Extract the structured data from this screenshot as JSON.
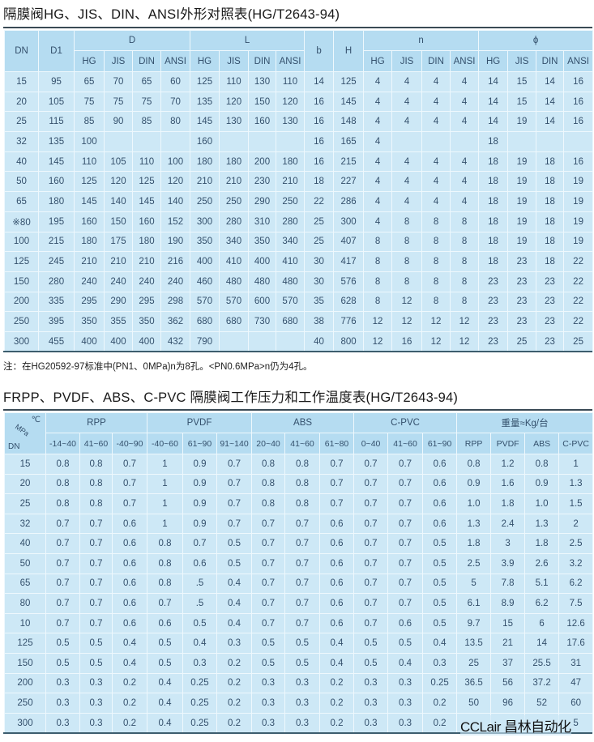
{
  "table1": {
    "title": "隔膜阀HG、JIS、DIN、ANSI外形对照表(HG/T2643-94)",
    "groups": {
      "dn": "DN",
      "d1": "D1",
      "D": "D",
      "L": "L",
      "b": "b",
      "H": "H",
      "n": "n",
      "phi": "ϕ"
    },
    "sub": [
      "HG",
      "JIS",
      "DIN",
      "ANSI"
    ],
    "rows": [
      [
        "15",
        "95",
        "65",
        "70",
        "65",
        "60",
        "125",
        "110",
        "130",
        "110",
        "14",
        "125",
        "4",
        "4",
        "4",
        "4",
        "14",
        "15",
        "14",
        "16"
      ],
      [
        "20",
        "105",
        "75",
        "75",
        "75",
        "70",
        "135",
        "120",
        "150",
        "120",
        "16",
        "145",
        "4",
        "4",
        "4",
        "4",
        "14",
        "15",
        "14",
        "16"
      ],
      [
        "25",
        "115",
        "85",
        "90",
        "85",
        "80",
        "145",
        "130",
        "160",
        "130",
        "16",
        "148",
        "4",
        "4",
        "4",
        "4",
        "14",
        "19",
        "14",
        "16"
      ],
      [
        "32",
        "135",
        "100",
        "",
        "",
        "",
        "160",
        "",
        "",
        "",
        "16",
        "165",
        "4",
        "",
        "",
        "",
        "18",
        "",
        "",
        ""
      ],
      [
        "40",
        "145",
        "110",
        "105",
        "110",
        "100",
        "180",
        "180",
        "200",
        "180",
        "16",
        "215",
        "4",
        "4",
        "4",
        "4",
        "18",
        "19",
        "18",
        "16"
      ],
      [
        "50",
        "160",
        "125",
        "120",
        "125",
        "120",
        "210",
        "210",
        "230",
        "210",
        "18",
        "227",
        "4",
        "4",
        "4",
        "4",
        "18",
        "19",
        "18",
        "19"
      ],
      [
        "65",
        "180",
        "145",
        "140",
        "145",
        "140",
        "250",
        "250",
        "290",
        "250",
        "22",
        "286",
        "4",
        "4",
        "4",
        "4",
        "18",
        "19",
        "18",
        "19"
      ],
      [
        "※80",
        "195",
        "160",
        "150",
        "160",
        "152",
        "300",
        "280",
        "310",
        "280",
        "25",
        "300",
        "4",
        "8",
        "8",
        "8",
        "18",
        "19",
        "18",
        "19"
      ],
      [
        "100",
        "215",
        "180",
        "175",
        "180",
        "190",
        "350",
        "340",
        "350",
        "340",
        "25",
        "407",
        "8",
        "8",
        "8",
        "8",
        "18",
        "19",
        "18",
        "19"
      ],
      [
        "125",
        "245",
        "210",
        "210",
        "210",
        "216",
        "400",
        "410",
        "400",
        "410",
        "30",
        "417",
        "8",
        "8",
        "8",
        "8",
        "18",
        "23",
        "18",
        "22"
      ],
      [
        "150",
        "280",
        "240",
        "240",
        "240",
        "240",
        "460",
        "480",
        "480",
        "480",
        "30",
        "576",
        "8",
        "8",
        "8",
        "8",
        "23",
        "23",
        "23",
        "22"
      ],
      [
        "200",
        "335",
        "295",
        "290",
        "295",
        "298",
        "570",
        "570",
        "600",
        "570",
        "35",
        "628",
        "8",
        "12",
        "8",
        "8",
        "23",
        "23",
        "23",
        "22"
      ],
      [
        "250",
        "395",
        "350",
        "355",
        "350",
        "362",
        "680",
        "680",
        "730",
        "680",
        "38",
        "776",
        "12",
        "12",
        "12",
        "12",
        "23",
        "23",
        "23",
        "22"
      ],
      [
        "300",
        "455",
        "400",
        "400",
        "400",
        "432",
        "790",
        "",
        "",
        "",
        "40",
        "800",
        "12",
        "16",
        "12",
        "12",
        "23",
        "25",
        "23",
        "25"
      ]
    ],
    "note": "注：在HG20592-97标准中(PN1、0MPa)n为8孔。<PN0.6MPa>n仍为4孔。"
  },
  "table2": {
    "title": "FRPP、PVDF、ABS、C-PVC 隔膜阀工作压力和工作温度表(HG/T2643-94)",
    "corner": {
      "temp": "℃",
      "mpa": "MPa",
      "dn": "DN"
    },
    "groups": [
      "RPP",
      "PVDF",
      "ABS",
      "C-PVC",
      "重量≈Kg/台"
    ],
    "sub": [
      "-14~40",
      "41~60",
      "-40~90",
      "-40~60",
      "61~90",
      "91~140",
      "20~40",
      "41~60",
      "61~80",
      "0~40",
      "41~60",
      "61~90",
      "RPP",
      "PVDF",
      "ABS",
      "C-PVC"
    ],
    "rows": [
      [
        "15",
        "0.8",
        "0.8",
        "0.7",
        "1",
        "0.9",
        "0.7",
        "0.8",
        "0.8",
        "0.7",
        "0.7",
        "0.7",
        "0.6",
        "0.8",
        "1.2",
        "0.8",
        "1"
      ],
      [
        "20",
        "0.8",
        "0.8",
        "0.7",
        "1",
        "0.9",
        "0.7",
        "0.8",
        "0.8",
        "0.7",
        "0.7",
        "0.7",
        "0.6",
        "0.9",
        "1.6",
        "0.9",
        "1.3"
      ],
      [
        "25",
        "0.8",
        "0.8",
        "0.7",
        "1",
        "0.9",
        "0.7",
        "0.8",
        "0.8",
        "0.7",
        "0.7",
        "0.7",
        "0.6",
        "1.0",
        "1.8",
        "1.0",
        "1.5"
      ],
      [
        "32",
        "0.7",
        "0.7",
        "0.6",
        "1",
        "0.9",
        "0.7",
        "0.7",
        "0.7",
        "0.6",
        "0.7",
        "0.7",
        "0.6",
        "1.3",
        "2.4",
        "1.3",
        "2"
      ],
      [
        "40",
        "0.7",
        "0.7",
        "0.6",
        "0.8",
        "0.7",
        "0.5",
        "0.7",
        "0.7",
        "0.6",
        "0.7",
        "0.7",
        "0.5",
        "1.8",
        "3",
        "1.8",
        "2.5"
      ],
      [
        "50",
        "0.7",
        "0.7",
        "0.6",
        "0.8",
        "0.6",
        "0.5",
        "0.7",
        "0.7",
        "0.6",
        "0.7",
        "0.7",
        "0.5",
        "2.5",
        "3.9",
        "2.6",
        "3.2"
      ],
      [
        "65",
        "0.7",
        "0.7",
        "0.6",
        "0.8",
        ".5",
        "0.4",
        "0.7",
        "0.7",
        "0.6",
        "0.7",
        "0.7",
        "0.5",
        "5",
        "7.8",
        "5.1",
        "6.2"
      ],
      [
        "80",
        "0.7",
        "0.7",
        "0.6",
        "0.7",
        ".5",
        "0.4",
        "0.7",
        "0.7",
        "0.6",
        "0.7",
        "0.7",
        "0.5",
        "6.1",
        "8.9",
        "6.2",
        "7.5"
      ],
      [
        "10",
        "0.7",
        "0.7",
        "0.6",
        "0.6",
        "0.5",
        "0.4",
        "0.7",
        "0.7",
        "0.6",
        "0.7",
        "0.6",
        "0.5",
        "9.7",
        "15",
        "6",
        "12.6"
      ],
      [
        "125",
        "0.5",
        "0.5",
        "0.4",
        "0.5",
        "0.4",
        "0.3",
        "0.5",
        "0.5",
        "0.4",
        "0.5",
        "0.5",
        "0.4",
        "13.5",
        "21",
        "14",
        "17.6"
      ],
      [
        "150",
        "0.5",
        "0.5",
        "0.4",
        "0.5",
        "0.3",
        "0.2",
        "0.5",
        "0.5",
        "0.4",
        "0.5",
        "0.4",
        "0.3",
        "25",
        "37",
        "25.5",
        "31"
      ],
      [
        "200",
        "0.3",
        "0.3",
        "0.2",
        "0.4",
        "0.25",
        "0.2",
        "0.3",
        "0.3",
        "0.2",
        "0.3",
        "0.3",
        "0.25",
        "36.5",
        "56",
        "37.2",
        "47"
      ],
      [
        "250",
        "0.3",
        "0.3",
        "0.2",
        "0.4",
        "0.25",
        "0.2",
        "0.3",
        "0.3",
        "0.2",
        "0.3",
        "0.3",
        "0.2",
        "50",
        "96",
        "52",
        "60"
      ],
      [
        "300",
        "0.3",
        "0.3",
        "0.2",
        "0.4",
        "0.25",
        "0.2",
        "0.3",
        "0.3",
        "0.2",
        "0.3",
        "0.3",
        "0.2",
        "",
        "",
        "",
        "5"
      ]
    ]
  },
  "watermark": "CCLair 昌林自动化"
}
